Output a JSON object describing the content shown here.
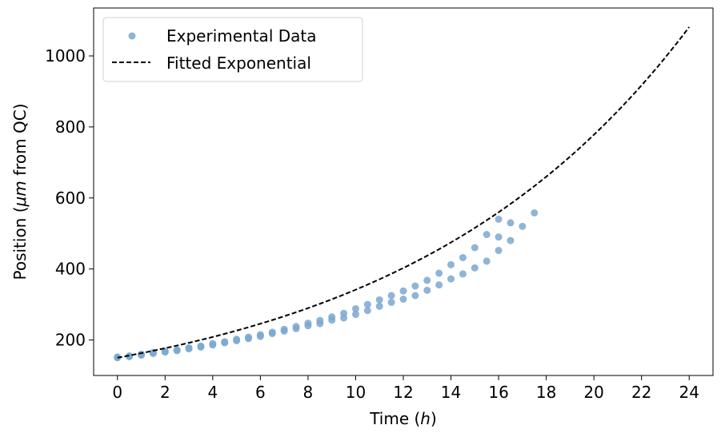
{
  "chart_data": {
    "type": "scatter",
    "xlabel_main": "Time (",
    "xlabel_var": "h",
    "xlabel_close": ")",
    "ylabel_main": "Position (",
    "ylabel_var": "μm",
    "ylabel_rest": " from QC)",
    "xlim": [
      -1,
      25
    ],
    "ylim": [
      100,
      1135
    ],
    "x_ticks": [
      0,
      2,
      4,
      6,
      8,
      10,
      12,
      14,
      16,
      18,
      20,
      22,
      24
    ],
    "y_ticks": [
      200,
      400,
      600,
      800,
      1000
    ],
    "legend_position": "upper-left",
    "legend": {
      "scatter_label": "Experimental Data",
      "line_label": "Fitted Exponential"
    },
    "colors": {
      "scatter": "#7BA7CF",
      "line": "#000000"
    },
    "series": [
      {
        "name": "Experimental Data",
        "kind": "scatter",
        "points": [
          [
            0.0,
            150
          ],
          [
            0.0,
            152
          ],
          [
            0.5,
            155
          ],
          [
            0.5,
            153
          ],
          [
            1.0,
            157
          ],
          [
            1.0,
            160
          ],
          [
            1.5,
            162
          ],
          [
            1.5,
            165
          ],
          [
            2.0,
            166
          ],
          [
            2.0,
            168
          ],
          [
            2.5,
            172
          ],
          [
            2.5,
            170
          ],
          [
            3.0,
            175
          ],
          [
            3.0,
            178
          ],
          [
            3.5,
            180
          ],
          [
            3.5,
            183
          ],
          [
            4.0,
            186
          ],
          [
            4.0,
            190
          ],
          [
            4.5,
            192
          ],
          [
            4.5,
            195
          ],
          [
            5.0,
            198
          ],
          [
            5.0,
            202
          ],
          [
            5.5,
            204
          ],
          [
            5.5,
            208
          ],
          [
            6.0,
            210
          ],
          [
            6.0,
            215
          ],
          [
            6.5,
            218
          ],
          [
            6.5,
            222
          ],
          [
            7.0,
            225
          ],
          [
            7.0,
            230
          ],
          [
            7.5,
            232
          ],
          [
            7.5,
            238
          ],
          [
            8.0,
            240
          ],
          [
            8.0,
            247
          ],
          [
            8.5,
            246
          ],
          [
            8.5,
            255
          ],
          [
            9.0,
            256
          ],
          [
            9.0,
            265
          ],
          [
            9.5,
            262
          ],
          [
            9.5,
            275
          ],
          [
            10.0,
            272
          ],
          [
            10.0,
            288
          ],
          [
            10.5,
            283
          ],
          [
            10.5,
            300
          ],
          [
            11.0,
            295
          ],
          [
            11.0,
            313
          ],
          [
            11.5,
            306
          ],
          [
            11.5,
            325
          ],
          [
            12.0,
            315
          ],
          [
            12.0,
            338
          ],
          [
            12.5,
            325
          ],
          [
            12.5,
            352
          ],
          [
            13.0,
            340
          ],
          [
            13.0,
            368
          ],
          [
            13.5,
            355
          ],
          [
            13.5,
            388
          ],
          [
            14.0,
            372
          ],
          [
            14.0,
            412
          ],
          [
            14.5,
            386
          ],
          [
            14.5,
            432
          ],
          [
            15.0,
            403
          ],
          [
            15.0,
            460
          ],
          [
            15.5,
            422
          ],
          [
            15.5,
            497
          ],
          [
            16.0,
            452
          ],
          [
            16.0,
            540
          ],
          [
            16.0,
            490
          ],
          [
            16.5,
            480
          ],
          [
            16.5,
            530
          ],
          [
            17.0,
            520
          ],
          [
            17.5,
            558
          ]
        ]
      },
      {
        "name": "Fitted Exponential",
        "kind": "line",
        "dash": "dashed",
        "a": 150.0,
        "b": 0.0823,
        "x_range": [
          0,
          24
        ],
        "samples": 97
      }
    ]
  }
}
